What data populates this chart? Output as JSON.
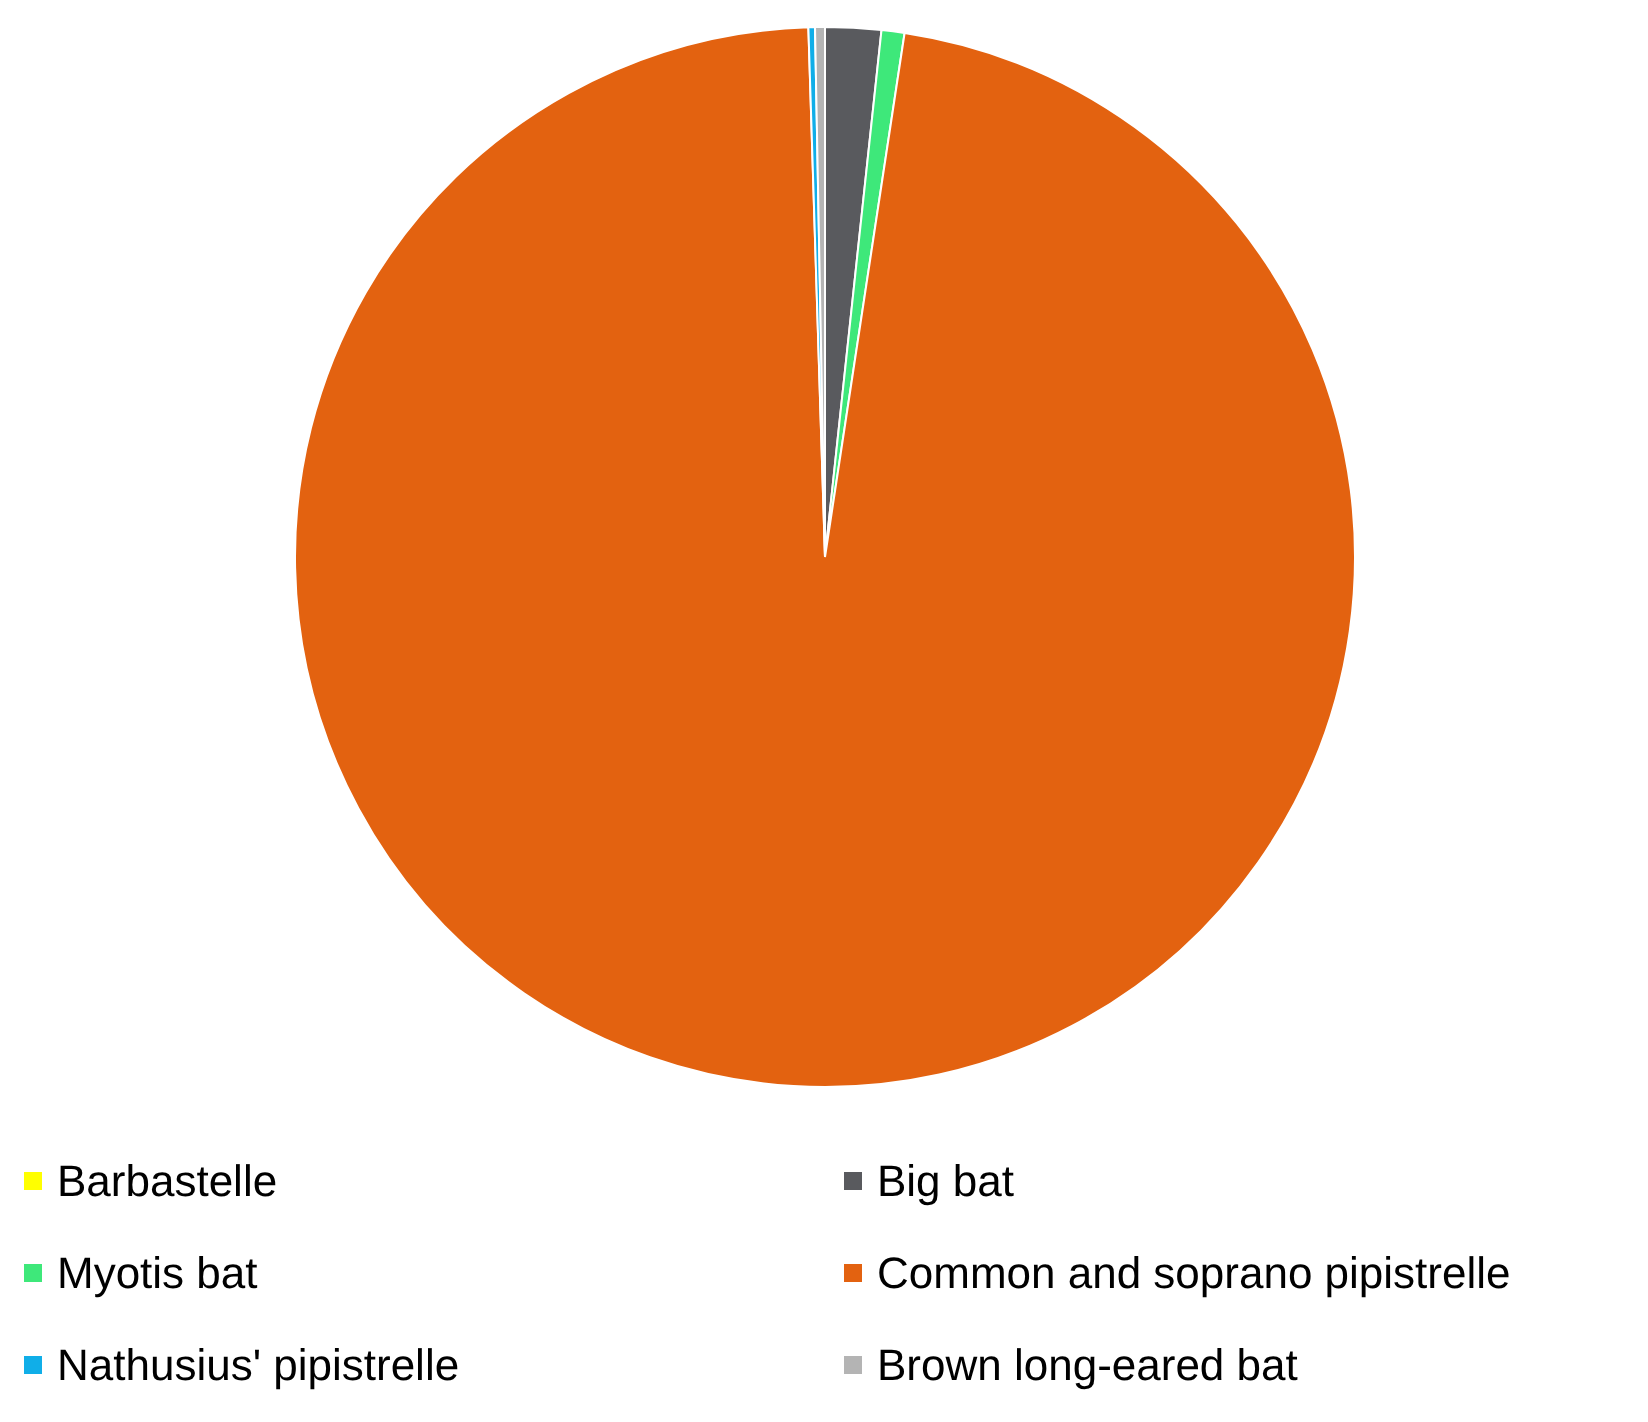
{
  "chart_data": {
    "type": "pie",
    "categories": [
      "Barbastelle",
      "Big bat",
      "Myotis bat",
      "Common and soprano pipistrelle",
      "Nathusius' pipistrelle",
      "Brown long-eared bat"
    ],
    "values": [
      0,
      1.7,
      0.7,
      97.1,
      0.2,
      0.3
    ],
    "colors": [
      "#ffff00",
      "#595a5e",
      "#3ee87a",
      "#e36210",
      "#10aee8",
      "#b4b4b4"
    ],
    "legend": "bottom"
  }
}
